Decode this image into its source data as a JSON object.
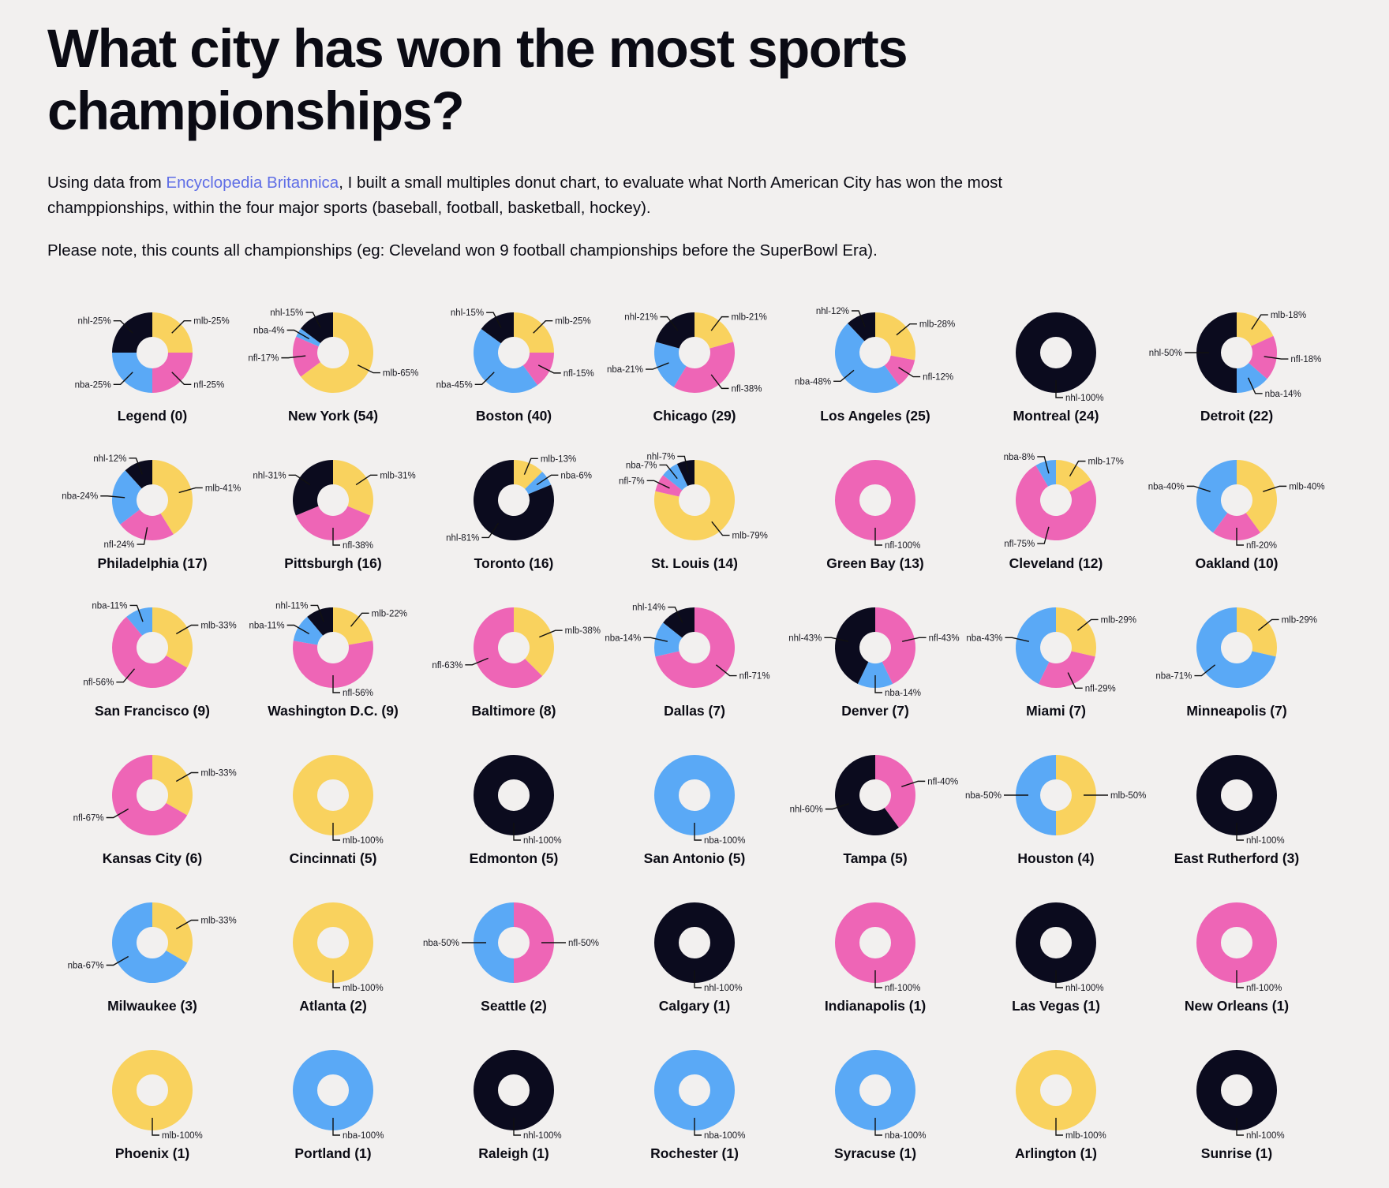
{
  "page": {
    "title": "What city has won the most sports championships?",
    "intro_before": "Using data from ",
    "intro_link": "Encyclopedia Britannica",
    "intro_after": ", I built a small multiples donut chart, to evaluate what North American City has won the most champpionships, within the four major sports (baseball, football, basketball, hockey).",
    "note": "Please note, this counts all championships (eg: Cleveland won 9 football championships before the SuperBowl Era)."
  },
  "colors": {
    "mlb": "#f9d25e",
    "nfl": "#ee65b6",
    "nba": "#5aa9f6",
    "nhl": "#0b0b1e"
  },
  "chart_data": {
    "type": "donut-small-multiples",
    "sports": [
      "mlb",
      "nfl",
      "nba",
      "nhl"
    ],
    "cities": [
      {
        "name": "Legend",
        "total": 0,
        "counts": {
          "mlb": 1,
          "nfl": 1,
          "nba": 1,
          "nhl": 1
        }
      },
      {
        "name": "New York",
        "total": 54,
        "counts": {
          "mlb": 35,
          "nfl": 9,
          "nba": 2,
          "nhl": 8
        }
      },
      {
        "name": "Boston",
        "total": 40,
        "counts": {
          "mlb": 10,
          "nfl": 6,
          "nba": 18,
          "nhl": 6
        }
      },
      {
        "name": "Chicago",
        "total": 29,
        "counts": {
          "mlb": 6,
          "nfl": 11,
          "nba": 6,
          "nhl": 6
        }
      },
      {
        "name": "Los Angeles",
        "total": 25,
        "counts": {
          "mlb": 7,
          "nfl": 3,
          "nba": 12,
          "nhl": 3
        }
      },
      {
        "name": "Montreal",
        "total": 24,
        "counts": {
          "mlb": 0,
          "nfl": 0,
          "nba": 0,
          "nhl": 24
        }
      },
      {
        "name": "Detroit",
        "total": 22,
        "counts": {
          "mlb": 4,
          "nfl": 4,
          "nba": 3,
          "nhl": 11
        }
      },
      {
        "name": "Philadelphia",
        "total": 17,
        "counts": {
          "mlb": 7,
          "nfl": 4,
          "nba": 4,
          "nhl": 2
        }
      },
      {
        "name": "Pittsburgh",
        "total": 16,
        "counts": {
          "mlb": 5,
          "nfl": 6,
          "nba": 0,
          "nhl": 5
        }
      },
      {
        "name": "Toronto",
        "total": 16,
        "counts": {
          "mlb": 2,
          "nfl": 0,
          "nba": 1,
          "nhl": 13
        }
      },
      {
        "name": "St. Louis",
        "total": 14,
        "counts": {
          "mlb": 11,
          "nfl": 1,
          "nba": 1,
          "nhl": 1
        }
      },
      {
        "name": "Green Bay",
        "total": 13,
        "counts": {
          "mlb": 0,
          "nfl": 13,
          "nba": 0,
          "nhl": 0
        }
      },
      {
        "name": "Cleveland",
        "total": 12,
        "counts": {
          "mlb": 2,
          "nfl": 9,
          "nba": 1,
          "nhl": 0
        }
      },
      {
        "name": "Oakland",
        "total": 10,
        "counts": {
          "mlb": 4,
          "nfl": 2,
          "nba": 4,
          "nhl": 0
        }
      },
      {
        "name": "San Francisco",
        "total": 9,
        "counts": {
          "mlb": 3,
          "nfl": 5,
          "nba": 1,
          "nhl": 0
        }
      },
      {
        "name": "Washington D.C.",
        "total": 9,
        "counts": {
          "mlb": 2,
          "nfl": 5,
          "nba": 1,
          "nhl": 1
        }
      },
      {
        "name": "Baltimore",
        "total": 8,
        "counts": {
          "mlb": 3,
          "nfl": 5,
          "nba": 0,
          "nhl": 0
        }
      },
      {
        "name": "Dallas",
        "total": 7,
        "counts": {
          "mlb": 0,
          "nfl": 5,
          "nba": 1,
          "nhl": 1
        }
      },
      {
        "name": "Denver",
        "total": 7,
        "counts": {
          "mlb": 0,
          "nfl": 3,
          "nba": 1,
          "nhl": 3
        }
      },
      {
        "name": "Miami",
        "total": 7,
        "counts": {
          "mlb": 2,
          "nfl": 2,
          "nba": 3,
          "nhl": 0
        }
      },
      {
        "name": "Minneapolis",
        "total": 7,
        "counts": {
          "mlb": 2,
          "nfl": 0,
          "nba": 5,
          "nhl": 0
        }
      },
      {
        "name": "Kansas City",
        "total": 6,
        "counts": {
          "mlb": 2,
          "nfl": 4,
          "nba": 0,
          "nhl": 0
        }
      },
      {
        "name": "Cincinnati",
        "total": 5,
        "counts": {
          "mlb": 5,
          "nfl": 0,
          "nba": 0,
          "nhl": 0
        }
      },
      {
        "name": "Edmonton",
        "total": 5,
        "counts": {
          "mlb": 0,
          "nfl": 0,
          "nba": 0,
          "nhl": 5
        }
      },
      {
        "name": "San Antonio",
        "total": 5,
        "counts": {
          "mlb": 0,
          "nfl": 0,
          "nba": 5,
          "nhl": 0
        }
      },
      {
        "name": "Tampa",
        "total": 5,
        "counts": {
          "mlb": 0,
          "nfl": 2,
          "nba": 0,
          "nhl": 3
        }
      },
      {
        "name": "Houston",
        "total": 4,
        "counts": {
          "mlb": 2,
          "nfl": 0,
          "nba": 2,
          "nhl": 0
        }
      },
      {
        "name": "East Rutherford",
        "total": 3,
        "counts": {
          "mlb": 0,
          "nfl": 0,
          "nba": 0,
          "nhl": 3
        }
      },
      {
        "name": "Milwaukee",
        "total": 3,
        "counts": {
          "mlb": 1,
          "nfl": 0,
          "nba": 2,
          "nhl": 0
        }
      },
      {
        "name": "Atlanta",
        "total": 2,
        "counts": {
          "mlb": 2,
          "nfl": 0,
          "nba": 0,
          "nhl": 0
        }
      },
      {
        "name": "Seattle",
        "total": 2,
        "counts": {
          "mlb": 0,
          "nfl": 1,
          "nba": 1,
          "nhl": 0
        }
      },
      {
        "name": "Calgary",
        "total": 1,
        "counts": {
          "mlb": 0,
          "nfl": 0,
          "nba": 0,
          "nhl": 1
        }
      },
      {
        "name": "Indianapolis",
        "total": 1,
        "counts": {
          "mlb": 0,
          "nfl": 1,
          "nba": 0,
          "nhl": 0
        }
      },
      {
        "name": "Las Vegas",
        "total": 1,
        "counts": {
          "mlb": 0,
          "nfl": 0,
          "nba": 0,
          "nhl": 1
        }
      },
      {
        "name": "New Orleans",
        "total": 1,
        "counts": {
          "mlb": 0,
          "nfl": 1,
          "nba": 0,
          "nhl": 0
        }
      },
      {
        "name": "Phoenix",
        "total": 1,
        "counts": {
          "mlb": 1,
          "nfl": 0,
          "nba": 0,
          "nhl": 0
        }
      },
      {
        "name": "Portland",
        "total": 1,
        "counts": {
          "mlb": 0,
          "nfl": 0,
          "nba": 1,
          "nhl": 0
        }
      },
      {
        "name": "Raleigh",
        "total": 1,
        "counts": {
          "mlb": 0,
          "nfl": 0,
          "nba": 0,
          "nhl": 1
        }
      },
      {
        "name": "Rochester",
        "total": 1,
        "counts": {
          "mlb": 0,
          "nfl": 0,
          "nba": 1,
          "nhl": 0
        }
      },
      {
        "name": "Syracuse",
        "total": 1,
        "counts": {
          "mlb": 0,
          "nfl": 0,
          "nba": 1,
          "nhl": 0
        }
      },
      {
        "name": "Arlington",
        "total": 1,
        "counts": {
          "mlb": 1,
          "nfl": 0,
          "nba": 0,
          "nhl": 0
        }
      },
      {
        "name": "Sunrise",
        "total": 1,
        "counts": {
          "mlb": 0,
          "nfl": 0,
          "nba": 0,
          "nhl": 1
        }
      }
    ]
  }
}
